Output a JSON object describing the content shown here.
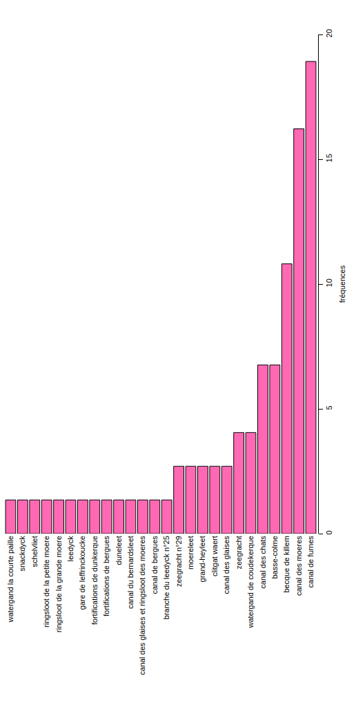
{
  "chart_data": {
    "type": "bar",
    "ylabel": "fréquences",
    "categories": [
      "watergand la courte paille",
      "snackdyck",
      "schelvliet",
      "ringsloot de la petite moere",
      "ringsloot de la grande moere",
      "leedyck",
      "gare de leffrinckoucke",
      "fortifications de dunkerque",
      "fortifications de bergues",
      "duneleet",
      "canal du bernardsleet",
      "canal des glaises et ringsloot des moeres",
      "canal de bergues",
      "branche du leedyck n°25",
      "zeegracht n°29",
      "moereleet",
      "grand-heyleet",
      "clitgat waert",
      "canal des glaises",
      "zeegracht",
      "watergand de coudekerque",
      "canal des chats",
      "basse-colme",
      "becque de killem",
      "canal des moeres",
      "canal de furnes"
    ],
    "values": [
      1.35,
      1.35,
      1.35,
      1.35,
      1.35,
      1.35,
      1.35,
      1.35,
      1.35,
      1.35,
      1.35,
      1.35,
      1.35,
      1.35,
      2.7,
      2.7,
      2.7,
      2.7,
      2.7,
      4.05,
      4.05,
      6.76,
      6.76,
      10.81,
      16.22,
      18.92
    ],
    "color": "#ff69b4",
    "ylim": [
      0,
      20
    ],
    "yticks": [
      0,
      5,
      10,
      15,
      20
    ],
    "grid": false
  }
}
